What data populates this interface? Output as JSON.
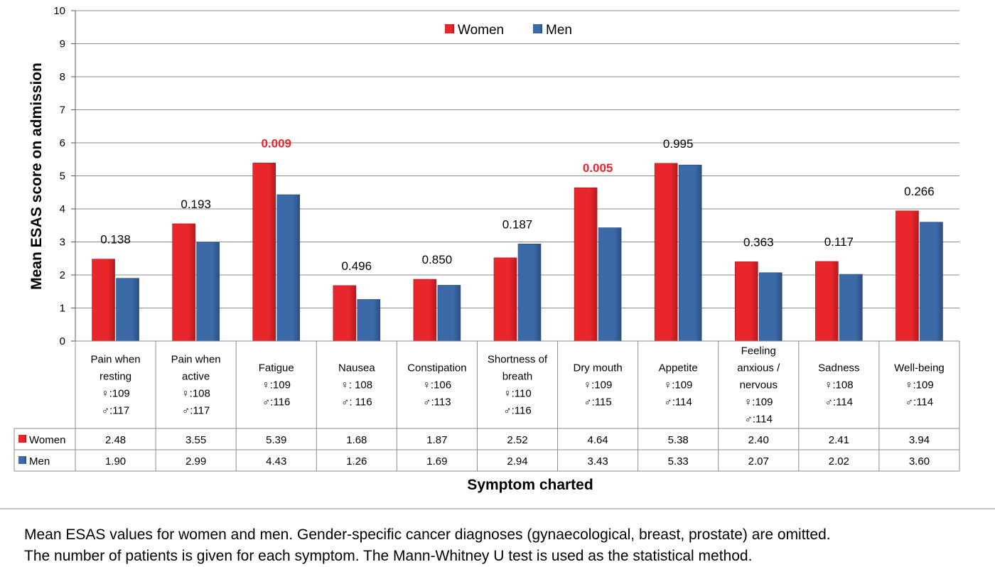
{
  "chart_data": {
    "type": "bar",
    "ylabel": "Mean ESAS score on admission",
    "xlabel": "Symptom charted",
    "ylim": [
      0,
      10
    ],
    "yticks": [
      "0",
      "1",
      "2",
      "3",
      "4",
      "5",
      "6",
      "7",
      "8",
      "9",
      "10"
    ],
    "grid": true,
    "legend_position": "top-center",
    "categories": [
      {
        "lines": [
          "Pain when",
          "resting"
        ],
        "n_women": ":109",
        "n_men": ":117"
      },
      {
        "lines": [
          "Pain when",
          "active"
        ],
        "n_women": ":108",
        "n_men": ":117"
      },
      {
        "lines": [
          "Fatigue"
        ],
        "n_women": ":109",
        "n_men": ":116"
      },
      {
        "lines": [
          "Nausea"
        ],
        "n_women": ": 108",
        "n_men": ": 116"
      },
      {
        "lines": [
          "Constipation"
        ],
        "n_women": ":106",
        "n_men": ":113"
      },
      {
        "lines": [
          "Shortness of",
          "breath"
        ],
        "n_women": ":110",
        "n_men": ":116"
      },
      {
        "lines": [
          "Dry mouth"
        ],
        "n_women": ":109",
        "n_men": ":115"
      },
      {
        "lines": [
          "Appetite"
        ],
        "n_women": ":109",
        "n_men": ":114"
      },
      {
        "lines": [
          "Feeling",
          "anxious /",
          "nervous"
        ],
        "n_women": ":109",
        "n_men": ":114"
      },
      {
        "lines": [
          "Sadness"
        ],
        "n_women": ":108",
        "n_men": ":114"
      },
      {
        "lines": [
          "Well-being"
        ],
        "n_women": ":109",
        "n_men": ":114"
      }
    ],
    "series": [
      {
        "name": "Women",
        "color": "#e8262b",
        "values": [
          2.48,
          3.55,
          5.39,
          1.68,
          1.87,
          2.52,
          4.64,
          5.38,
          2.4,
          2.41,
          3.94
        ],
        "labels": [
          "2.48",
          "3.55",
          "5.39",
          "1.68",
          "1.87",
          "2.52",
          "4.64",
          "5.38",
          "2.40",
          "2.41",
          "3.94"
        ]
      },
      {
        "name": "Men",
        "color": "#3c6aa8",
        "values": [
          1.9,
          2.99,
          4.43,
          1.26,
          1.69,
          2.94,
          3.43,
          5.33,
          2.07,
          2.02,
          3.6
        ],
        "labels": [
          "1.90",
          "2.99",
          "4.43",
          "1.26",
          "1.69",
          "2.94",
          "3.43",
          "5.33",
          "2.07",
          "2.02",
          "3.60"
        ]
      }
    ],
    "p_values": [
      "0.138",
      "0.193",
      "0.009",
      "0.496",
      "0.850",
      "0.187",
      "0.005",
      "0.995",
      "0.363",
      "0.117",
      "0.266"
    ],
    "p_significant": [
      false,
      false,
      true,
      false,
      false,
      false,
      true,
      false,
      false,
      false,
      false
    ],
    "female_symbol": "♀",
    "male_symbol": "♂"
  },
  "caption": {
    "line1": "Mean ESAS values for women and men. Gender-specific cancer diagnoses (gynaecological, breast, prostate) are omitted.",
    "line2": "The number of patients is given for each symptom. The Mann-Whitney U test is used as the statistical method."
  }
}
